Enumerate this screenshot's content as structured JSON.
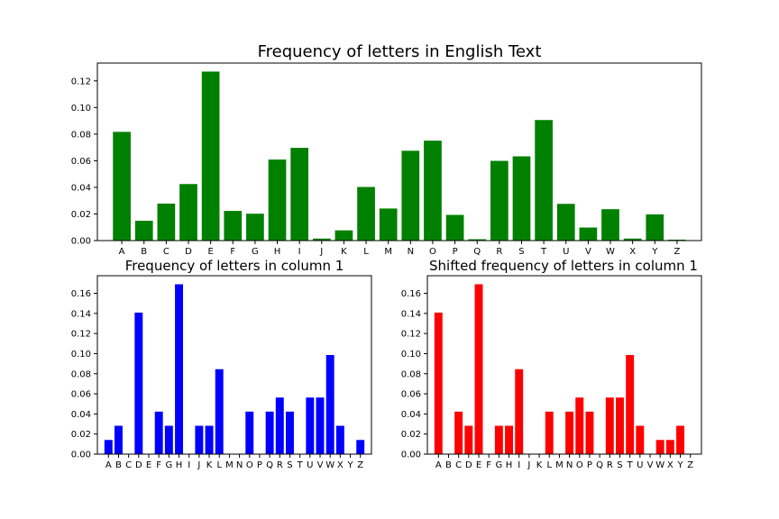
{
  "chart_data": [
    {
      "type": "bar",
      "title": "Frequency of letters in English Text",
      "color": "#008000",
      "categories": [
        "A",
        "B",
        "C",
        "D",
        "E",
        "F",
        "G",
        "H",
        "I",
        "J",
        "K",
        "L",
        "M",
        "N",
        "O",
        "P",
        "Q",
        "R",
        "S",
        "T",
        "U",
        "V",
        "W",
        "X",
        "Y",
        "Z"
      ],
      "values": [
        0.0817,
        0.0149,
        0.0278,
        0.0425,
        0.127,
        0.0223,
        0.0202,
        0.0609,
        0.0697,
        0.0015,
        0.0077,
        0.0403,
        0.0241,
        0.0675,
        0.0751,
        0.0193,
        0.001,
        0.0599,
        0.0633,
        0.0906,
        0.0276,
        0.0098,
        0.0236,
        0.0015,
        0.0197,
        0.0007
      ],
      "ylim": [
        0,
        0.1334
      ],
      "yticks": [
        "0.00",
        "0.02",
        "0.04",
        "0.06",
        "0.08",
        "0.10",
        "0.12"
      ]
    },
    {
      "type": "bar",
      "title": "Frequency of letters in column 1",
      "color": "#0000ff",
      "categories": [
        "A",
        "B",
        "C",
        "D",
        "E",
        "F",
        "G",
        "H",
        "I",
        "J",
        "K",
        "L",
        "M",
        "N",
        "O",
        "P",
        "Q",
        "R",
        "S",
        "T",
        "U",
        "V",
        "W",
        "X",
        "Y",
        "Z"
      ],
      "values": [
        0.0141,
        0.0282,
        0,
        0.1408,
        0,
        0.0423,
        0.0282,
        0.169,
        0,
        0.0282,
        0.0282,
        0.0845,
        0,
        0,
        0.0423,
        0,
        0.0423,
        0.0563,
        0.0423,
        0,
        0.0563,
        0.0563,
        0.0986,
        0.0282,
        0,
        0.0141
      ],
      "ylim": [
        0,
        0.1775
      ],
      "yticks": [
        "0.00",
        "0.02",
        "0.04",
        "0.06",
        "0.08",
        "0.10",
        "0.12",
        "0.14",
        "0.16"
      ]
    },
    {
      "type": "bar",
      "title": "Shifted frequency of letters in column 1",
      "color": "#ff0000",
      "categories": [
        "A",
        "B",
        "C",
        "D",
        "E",
        "F",
        "G",
        "H",
        "I",
        "J",
        "K",
        "L",
        "M",
        "N",
        "O",
        "P",
        "Q",
        "R",
        "S",
        "T",
        "U",
        "V",
        "W",
        "X",
        "Y",
        "Z"
      ],
      "values": [
        0.1408,
        0,
        0.0423,
        0.0282,
        0.169,
        0,
        0.0282,
        0.0282,
        0.0845,
        0,
        0,
        0.0423,
        0,
        0.0423,
        0.0563,
        0.0423,
        0,
        0.0563,
        0.0563,
        0.0986,
        0.0282,
        0,
        0.0141,
        0.0141,
        0.0282,
        0
      ],
      "ylim": [
        0,
        0.1775
      ],
      "yticks": [
        "0.00",
        "0.02",
        "0.04",
        "0.06",
        "0.08",
        "0.10",
        "0.12",
        "0.14",
        "0.16"
      ]
    }
  ]
}
